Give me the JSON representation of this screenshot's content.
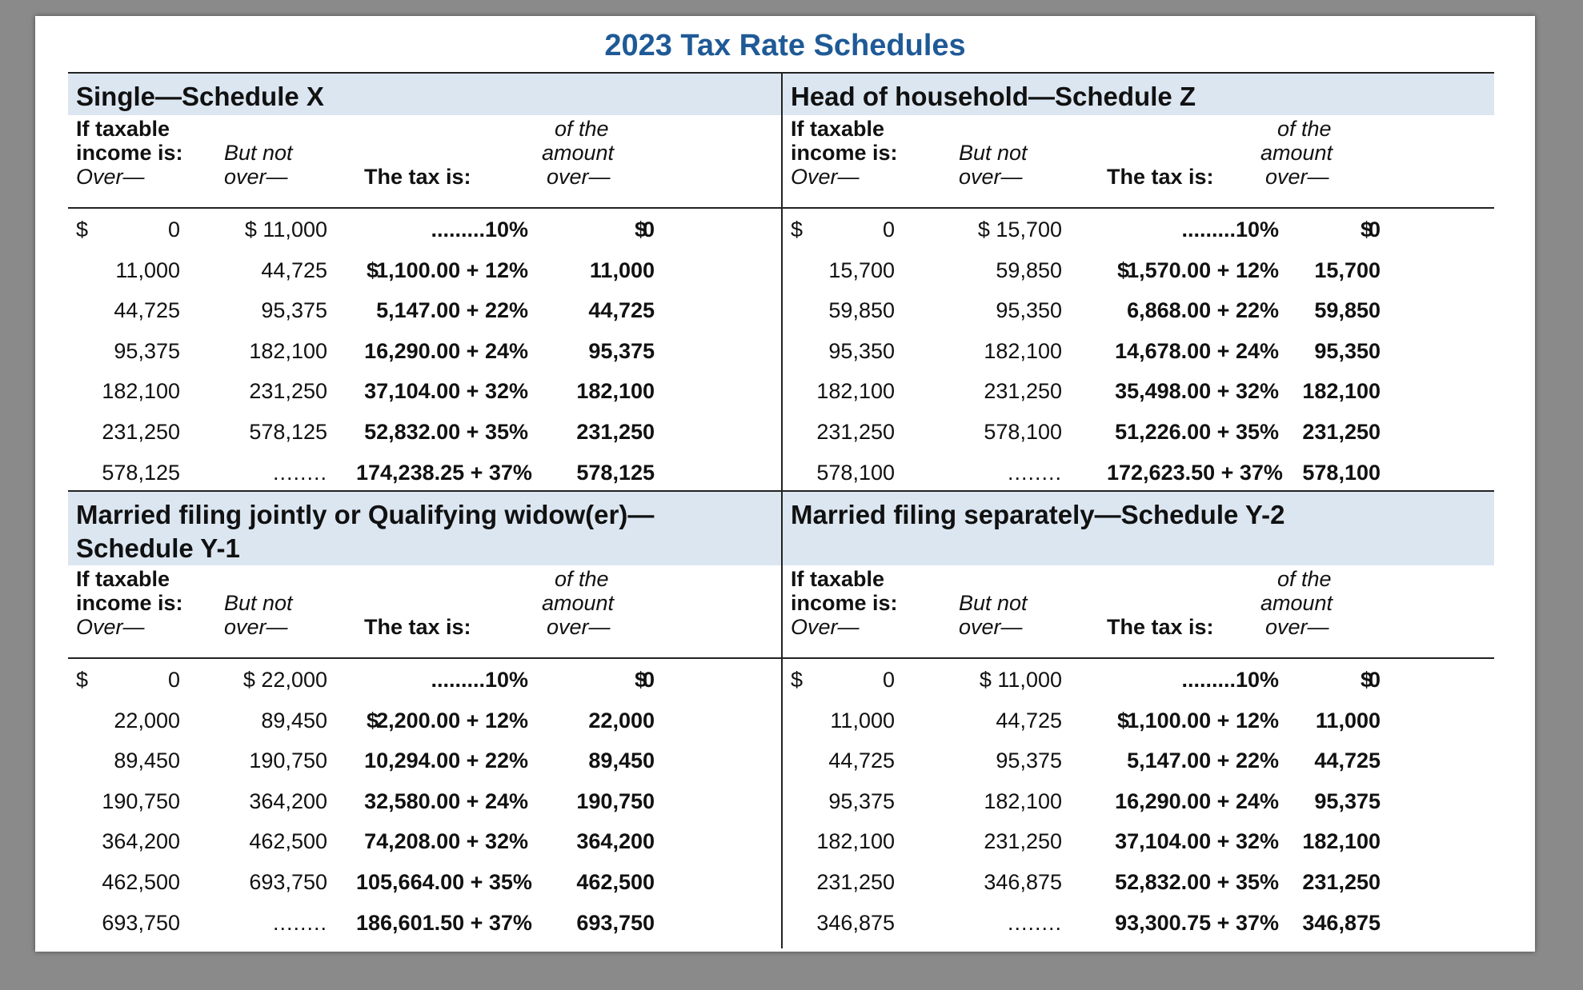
{
  "title": "2023 Tax Rate Schedules",
  "headers": {
    "if_taxable": "If taxable",
    "income_is": "income is:",
    "over": "Over—",
    "but_not": "But not",
    "but_over": "over—",
    "tax_is": "The tax is:",
    "of_the": "of the",
    "amount": "amount",
    "amount_over": "over—"
  },
  "schedules": {
    "single": {
      "title": "Single—Schedule X",
      "rows": [
        {
          "over": "0",
          "but_not": "$ 11,000",
          "tax_dollar": "",
          "tax": ".........10%",
          "amount_over": "0"
        },
        {
          "over": "11,000",
          "but_not": "44,725",
          "tax_dollar": "$",
          "tax": "1,100.00 + 12%",
          "amount_over": "11,000"
        },
        {
          "over": "44,725",
          "but_not": "95,375",
          "tax_dollar": "",
          "tax": "5,147.00 + 22%",
          "amount_over": "44,725"
        },
        {
          "over": "95,375",
          "but_not": "182,100",
          "tax_dollar": "",
          "tax": "16,290.00 + 24%",
          "amount_over": "95,375"
        },
        {
          "over": "182,100",
          "but_not": "231,250",
          "tax_dollar": "",
          "tax": "37,104.00 + 32%",
          "amount_over": "182,100"
        },
        {
          "over": "231,250",
          "but_not": "578,125",
          "tax_dollar": "",
          "tax": "52,832.00 + 35%",
          "amount_over": "231,250"
        },
        {
          "over": "578,125",
          "but_not": "........",
          "tax_dollar": "",
          "tax": "174,238.25 + 37%",
          "amount_over": "578,125"
        }
      ]
    },
    "head_of_household": {
      "title": "Head of household—Schedule Z",
      "rows": [
        {
          "over": "0",
          "but_not": "$ 15,700",
          "tax_dollar": "",
          "tax": ".........10%",
          "amount_over": "0"
        },
        {
          "over": "15,700",
          "but_not": "59,850",
          "tax_dollar": "$",
          "tax": "1,570.00 + 12%",
          "amount_over": "15,700"
        },
        {
          "over": "59,850",
          "but_not": "95,350",
          "tax_dollar": "",
          "tax": "6,868.00 + 22%",
          "amount_over": "59,850"
        },
        {
          "over": "95,350",
          "but_not": "182,100",
          "tax_dollar": "",
          "tax": "14,678.00 + 24%",
          "amount_over": "95,350"
        },
        {
          "over": "182,100",
          "but_not": "231,250",
          "tax_dollar": "",
          "tax": "35,498.00 + 32%",
          "amount_over": "182,100"
        },
        {
          "over": "231,250",
          "but_not": "578,100",
          "tax_dollar": "",
          "tax": "51,226.00 + 35%",
          "amount_over": "231,250"
        },
        {
          "over": "578,100",
          "but_not": "........",
          "tax_dollar": "",
          "tax": "172,623.50 + 37%",
          "amount_over": "578,100"
        }
      ]
    },
    "married_jointly": {
      "title": "Married filing jointly or Qualifying widow(er)—Schedule Y-1",
      "rows": [
        {
          "over": "0",
          "but_not": "$ 22,000",
          "tax_dollar": "",
          "tax": ".........10%",
          "amount_over": "0"
        },
        {
          "over": "22,000",
          "but_not": "89,450",
          "tax_dollar": "$",
          "tax": "2,200.00 + 12%",
          "amount_over": "22,000"
        },
        {
          "over": "89,450",
          "but_not": "190,750",
          "tax_dollar": "",
          "tax": "10,294.00 + 22%",
          "amount_over": "89,450"
        },
        {
          "over": "190,750",
          "but_not": "364,200",
          "tax_dollar": "",
          "tax": "32,580.00 + 24%",
          "amount_over": "190,750"
        },
        {
          "over": "364,200",
          "but_not": "462,500",
          "tax_dollar": "",
          "tax": "74,208.00 + 32%",
          "amount_over": "364,200"
        },
        {
          "over": "462,500",
          "but_not": "693,750",
          "tax_dollar": "",
          "tax": "105,664.00 + 35%",
          "amount_over": "462,500"
        },
        {
          "over": "693,750",
          "but_not": "........",
          "tax_dollar": "",
          "tax": "186,601.50 + 37%",
          "amount_over": "693,750"
        }
      ]
    },
    "married_separately": {
      "title": "Married filing separately—Schedule Y-2",
      "rows": [
        {
          "over": "0",
          "but_not": "$ 11,000",
          "tax_dollar": "",
          "tax": ".........10%",
          "amount_over": "0"
        },
        {
          "over": "11,000",
          "but_not": "44,725",
          "tax_dollar": "$",
          "tax": "1,100.00 + 12%",
          "amount_over": "11,000"
        },
        {
          "over": "44,725",
          "but_not": "95,375",
          "tax_dollar": "",
          "tax": "5,147.00 + 22%",
          "amount_over": "44,725"
        },
        {
          "over": "95,375",
          "but_not": "182,100",
          "tax_dollar": "",
          "tax": "16,290.00 + 24%",
          "amount_over": "95,375"
        },
        {
          "over": "182,100",
          "but_not": "231,250",
          "tax_dollar": "",
          "tax": "37,104.00 + 32%",
          "amount_over": "182,100"
        },
        {
          "over": "231,250",
          "but_not": "346,875",
          "tax_dollar": "",
          "tax": "52,832.00 + 35%",
          "amount_over": "231,250"
        },
        {
          "over": "346,875",
          "but_not": "........",
          "tax_dollar": "",
          "tax": "93,300.75 + 37%",
          "amount_over": "346,875"
        }
      ]
    }
  },
  "currency_symbol": "$",
  "colors": {
    "title": "#1f5a96",
    "header_band": "#dbe6f1",
    "page": "#ffffff",
    "backdrop": "#8a8a8a"
  }
}
